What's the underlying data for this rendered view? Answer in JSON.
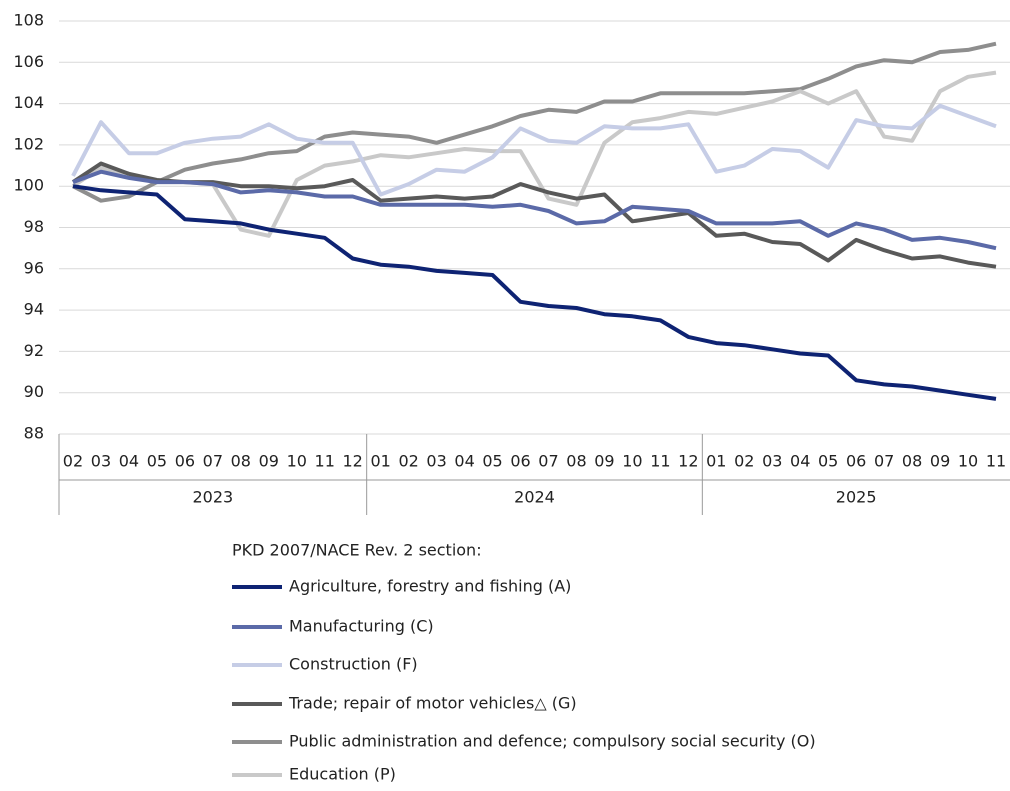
{
  "chart_data": {
    "type": "line",
    "categories": [
      "02",
      "03",
      "04",
      "05",
      "06",
      "07",
      "08",
      "09",
      "10",
      "11",
      "12",
      "01",
      "02",
      "03",
      "04",
      "05",
      "06",
      "07",
      "08",
      "09",
      "10",
      "11",
      "12",
      "01",
      "02",
      "03",
      "04",
      "05",
      "06",
      "07",
      "08",
      "09",
      "10",
      "11"
    ],
    "category_groups": [
      {
        "label": "2023",
        "count": 11
      },
      {
        "label": "2024",
        "count": 12
      },
      {
        "label": "2025",
        "count": 11
      }
    ],
    "ylim": [
      88,
      108
    ],
    "yticks": [
      88,
      90,
      92,
      94,
      96,
      98,
      100,
      102,
      104,
      106,
      108
    ],
    "grid": true,
    "legend_title": "PKD 2007/NACE Rev. 2 section:",
    "series": [
      {
        "name": "Agriculture, forestry and fishing (A)",
        "color": "#0e2373",
        "values": [
          100,
          99.8,
          99.7,
          99.6,
          98.4,
          98.3,
          98.2,
          97.9,
          97.7,
          97.5,
          96.5,
          96.2,
          96.1,
          95.9,
          95.8,
          95.7,
          94.4,
          94.2,
          94.1,
          93.8,
          93.7,
          93.5,
          92.7,
          92.4,
          92.3,
          92.1,
          91.9,
          91.8,
          90.6,
          90.4,
          90.3,
          90.1,
          89.9,
          89.7
        ]
      },
      {
        "name": "Manufacturing (C)",
        "color": "#5b6aa8",
        "values": [
          100.2,
          100.7,
          100.4,
          100.2,
          100.2,
          100.1,
          99.7,
          99.8,
          99.7,
          99.5,
          99.5,
          99.1,
          99.1,
          99.1,
          99.1,
          99.0,
          99.1,
          98.8,
          98.2,
          98.3,
          99.0,
          98.9,
          98.8,
          98.2,
          98.2,
          98.2,
          98.3,
          97.6,
          98.2,
          97.9,
          97.4,
          97.5,
          97.3,
          97.0
        ]
      },
      {
        "name": "Construction (F)",
        "color": "#c6cde6",
        "values": [
          100.5,
          103.1,
          101.6,
          101.6,
          102.1,
          102.3,
          102.4,
          103.0,
          102.3,
          102.1,
          102.1,
          99.6,
          100.1,
          100.8,
          100.7,
          101.4,
          102.8,
          102.2,
          102.1,
          102.9,
          102.8,
          102.8,
          103.0,
          100.7,
          101.0,
          101.8,
          101.7,
          100.9,
          103.2,
          102.9,
          102.8,
          103.9,
          103.4,
          102.9
        ]
      },
      {
        "name": "Trade; repair of motor vehicles△ (G)",
        "color": "#595959",
        "values": [
          100.2,
          101.1,
          100.6,
          100.3,
          100.2,
          100.2,
          100.0,
          100.0,
          99.9,
          100.0,
          100.3,
          99.3,
          99.4,
          99.5,
          99.4,
          99.5,
          100.1,
          99.7,
          99.4,
          99.6,
          98.3,
          98.5,
          98.7,
          97.6,
          97.7,
          97.3,
          97.2,
          96.4,
          97.4,
          96.9,
          96.5,
          96.6,
          96.3,
          96.1
        ]
      },
      {
        "name": "Public administration and defence; compulsory social security (O)",
        "color": "#8e8e8e",
        "values": [
          100.0,
          99.3,
          99.5,
          100.2,
          100.8,
          101.1,
          101.3,
          101.6,
          101.7,
          102.4,
          102.6,
          102.5,
          102.4,
          102.1,
          102.5,
          102.9,
          103.4,
          103.7,
          103.6,
          104.1,
          104.1,
          104.5,
          104.5,
          104.5,
          104.5,
          104.6,
          104.7,
          105.2,
          105.8,
          106.1,
          106.0,
          106.5,
          106.6,
          106.9
        ]
      },
      {
        "name": "Education (P)",
        "color": "#c9c9c9",
        "values": [
          100.0,
          100.9,
          100.5,
          100.2,
          100.2,
          100.1,
          97.9,
          97.6,
          100.3,
          101.0,
          101.2,
          101.5,
          101.4,
          101.6,
          101.8,
          101.7,
          101.7,
          99.4,
          99.1,
          102.1,
          103.1,
          103.3,
          103.6,
          103.5,
          103.8,
          104.1,
          104.6,
          104.0,
          104.6,
          102.4,
          102.2,
          104.6,
          105.3,
          105.5
        ]
      }
    ]
  }
}
